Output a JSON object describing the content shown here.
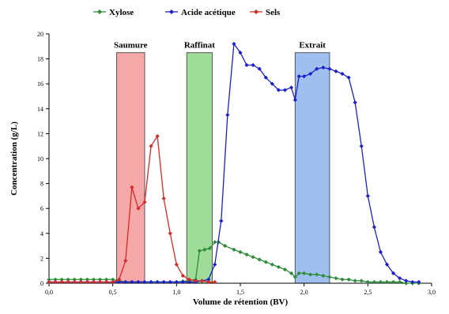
{
  "chart_data": {
    "type": "line",
    "title": "",
    "xlabel": "Volume de rétention (BV)",
    "ylabel": "Concentration (g/L)",
    "xlim": [
      0,
      3.0
    ],
    "ylim": [
      0,
      20
    ],
    "x_ticks": [
      "0,0",
      "0,5",
      "1,0",
      "1,5",
      "2,0",
      "2,5",
      "3,0"
    ],
    "y_ticks": [
      "0",
      "2",
      "4",
      "6",
      "8",
      "10",
      "12",
      "14",
      "16",
      "18",
      "20"
    ],
    "grid": false,
    "legend_position": "top",
    "regions": [
      {
        "label": "Saumure",
        "x_start": 0.53,
        "x_end": 0.75,
        "top": 18.5,
        "color": "#f4a8a8"
      },
      {
        "label": "Raffinat",
        "x_start": 1.08,
        "x_end": 1.28,
        "top": 18.5,
        "color": "#9fdc9a"
      },
      {
        "label": "Extrait",
        "x_start": 1.93,
        "x_end": 2.2,
        "top": 18.5,
        "color": "#9fc0ee"
      }
    ],
    "series": [
      {
        "name": "Xylose",
        "color": "#2e8b3a",
        "marker": "diamond",
        "points": [
          [
            0.0,
            0.3
          ],
          [
            0.05,
            0.3
          ],
          [
            0.1,
            0.3
          ],
          [
            0.15,
            0.3
          ],
          [
            0.2,
            0.3
          ],
          [
            0.25,
            0.3
          ],
          [
            0.3,
            0.3
          ],
          [
            0.35,
            0.3
          ],
          [
            0.4,
            0.3
          ],
          [
            0.45,
            0.3
          ],
          [
            0.5,
            0.3
          ],
          [
            0.55,
            0.2
          ],
          [
            0.6,
            0.1
          ],
          [
            0.65,
            0.1
          ],
          [
            0.7,
            0.1
          ],
          [
            0.75,
            0.1
          ],
          [
            0.8,
            0.1
          ],
          [
            0.85,
            0.1
          ],
          [
            0.9,
            0.1
          ],
          [
            0.95,
            0.1
          ],
          [
            1.0,
            0.1
          ],
          [
            1.05,
            0.15
          ],
          [
            1.1,
            0.2
          ],
          [
            1.15,
            0.3
          ],
          [
            1.18,
            2.6
          ],
          [
            1.22,
            2.7
          ],
          [
            1.26,
            2.8
          ],
          [
            1.3,
            3.3
          ],
          [
            1.33,
            3.3
          ],
          [
            1.38,
            3.0
          ],
          [
            1.45,
            2.7
          ],
          [
            1.5,
            2.5
          ],
          [
            1.55,
            2.3
          ],
          [
            1.6,
            2.1
          ],
          [
            1.65,
            1.9
          ],
          [
            1.7,
            1.7
          ],
          [
            1.75,
            1.5
          ],
          [
            1.8,
            1.3
          ],
          [
            1.85,
            1.1
          ],
          [
            1.9,
            0.8
          ],
          [
            1.93,
            0.5
          ],
          [
            1.96,
            0.8
          ],
          [
            2.0,
            0.8
          ],
          [
            2.05,
            0.7
          ],
          [
            2.1,
            0.7
          ],
          [
            2.15,
            0.6
          ],
          [
            2.2,
            0.5
          ],
          [
            2.25,
            0.4
          ],
          [
            2.3,
            0.3
          ],
          [
            2.35,
            0.3
          ],
          [
            2.4,
            0.2
          ],
          [
            2.45,
            0.2
          ],
          [
            2.5,
            0.1
          ],
          [
            2.55,
            0.1
          ],
          [
            2.6,
            0.1
          ],
          [
            2.65,
            0.1
          ],
          [
            2.7,
            0.1
          ],
          [
            2.75,
            0.1
          ],
          [
            2.8,
            0.0
          ],
          [
            2.85,
            0.0
          ],
          [
            2.9,
            0.0
          ]
        ]
      },
      {
        "name": "Acide acétique",
        "color": "#1c1fc8",
        "marker": "diamond",
        "points": [
          [
            0.0,
            0.1
          ],
          [
            0.05,
            0.1
          ],
          [
            0.1,
            0.1
          ],
          [
            0.15,
            0.1
          ],
          [
            0.2,
            0.1
          ],
          [
            0.25,
            0.1
          ],
          [
            0.3,
            0.1
          ],
          [
            0.35,
            0.1
          ],
          [
            0.4,
            0.1
          ],
          [
            0.45,
            0.1
          ],
          [
            0.5,
            0.1
          ],
          [
            0.55,
            0.1
          ],
          [
            0.6,
            0.1
          ],
          [
            0.65,
            0.1
          ],
          [
            0.7,
            0.1
          ],
          [
            0.75,
            0.1
          ],
          [
            0.8,
            0.1
          ],
          [
            0.85,
            0.1
          ],
          [
            0.9,
            0.1
          ],
          [
            0.95,
            0.1
          ],
          [
            1.0,
            0.1
          ],
          [
            1.05,
            0.1
          ],
          [
            1.1,
            0.1
          ],
          [
            1.15,
            0.1
          ],
          [
            1.2,
            0.2
          ],
          [
            1.25,
            0.3
          ],
          [
            1.3,
            1.5
          ],
          [
            1.35,
            5.0
          ],
          [
            1.4,
            13.5
          ],
          [
            1.45,
            19.2
          ],
          [
            1.5,
            18.5
          ],
          [
            1.55,
            17.5
          ],
          [
            1.6,
            17.5
          ],
          [
            1.65,
            17.2
          ],
          [
            1.7,
            16.5
          ],
          [
            1.75,
            16.0
          ],
          [
            1.8,
            15.5
          ],
          [
            1.85,
            15.5
          ],
          [
            1.9,
            15.7
          ],
          [
            1.93,
            14.7
          ],
          [
            1.96,
            16.6
          ],
          [
            2.0,
            16.6
          ],
          [
            2.05,
            16.8
          ],
          [
            2.1,
            17.2
          ],
          [
            2.15,
            17.3
          ],
          [
            2.2,
            17.2
          ],
          [
            2.25,
            17.0
          ],
          [
            2.3,
            16.8
          ],
          [
            2.35,
            16.5
          ],
          [
            2.4,
            14.5
          ],
          [
            2.45,
            11.0
          ],
          [
            2.5,
            7.0
          ],
          [
            2.55,
            4.5
          ],
          [
            2.6,
            2.5
          ],
          [
            2.65,
            1.5
          ],
          [
            2.7,
            0.8
          ],
          [
            2.75,
            0.4
          ],
          [
            2.8,
            0.2
          ],
          [
            2.85,
            0.1
          ],
          [
            2.9,
            0.1
          ]
        ]
      },
      {
        "name": "Sels",
        "color": "#d42a2a",
        "marker": "diamond",
        "points": [
          [
            0.0,
            0.1
          ],
          [
            0.05,
            0.1
          ],
          [
            0.1,
            0.1
          ],
          [
            0.15,
            0.1
          ],
          [
            0.2,
            0.1
          ],
          [
            0.25,
            0.1
          ],
          [
            0.3,
            0.1
          ],
          [
            0.35,
            0.1
          ],
          [
            0.4,
            0.1
          ],
          [
            0.45,
            0.1
          ],
          [
            0.5,
            0.1
          ],
          [
            0.55,
            0.3
          ],
          [
            0.6,
            1.8
          ],
          [
            0.65,
            7.7
          ],
          [
            0.7,
            6.0
          ],
          [
            0.75,
            6.5
          ],
          [
            0.8,
            11.0
          ],
          [
            0.85,
            11.8
          ],
          [
            0.9,
            6.8
          ],
          [
            0.95,
            4.0
          ],
          [
            1.0,
            1.5
          ],
          [
            1.05,
            0.6
          ],
          [
            1.1,
            0.3
          ],
          [
            1.15,
            0.2
          ],
          [
            1.2,
            0.2
          ],
          [
            1.25,
            0.1
          ],
          [
            1.3,
            0.1
          ]
        ]
      }
    ]
  }
}
